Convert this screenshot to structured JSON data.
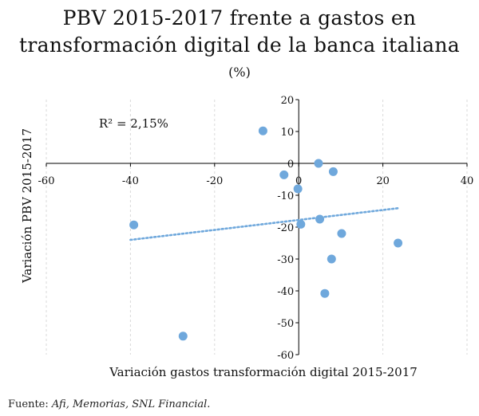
{
  "title_line1": "PBV 2015-2017 frente a gastos en",
  "title_line2": "transformación digital de la banca italiana",
  "subtitle": "(%)",
  "source": {
    "label": "Fuente: ",
    "text": "Afi, Memorias, SNL Financial",
    "end": "."
  },
  "colors": {
    "points": "#6fa8dc",
    "trendline": "#6fa8dc",
    "axis": "#000000",
    "grid": "#d9d9d9"
  },
  "chart_data": {
    "type": "scatter",
    "title": "PBV 2015-2017 frente a gastos en transformación digital de la banca italiana",
    "subtitle": "(%)",
    "xlabel": "Variación gastos transformación digital 2015-2017",
    "ylabel": "Variación PBV 2015-2017",
    "xlim": [
      -60,
      40
    ],
    "ylim": [
      -60,
      20
    ],
    "xticks": [
      -60,
      -40,
      -20,
      0,
      20,
      40
    ],
    "yticks": [
      20,
      10,
      0,
      -10,
      -20,
      -30,
      -40,
      -50,
      -60
    ],
    "tick_labels_x": [
      "-60",
      "-40",
      "-20",
      "0",
      "20",
      "40"
    ],
    "tick_labels_y": [
      "20",
      "10",
      "0",
      "-10",
      "-20",
      "-30",
      "-40",
      "-50",
      "-60"
    ],
    "grid": "vertical-dashed",
    "points": [
      {
        "x": -8.5,
        "y": 10.2
      },
      {
        "x": 4.7,
        "y": 0.0
      },
      {
        "x": 8.2,
        "y": -2.6
      },
      {
        "x": -3.5,
        "y": -3.6
      },
      {
        "x": -0.2,
        "y": -8.0
      },
      {
        "x": -39.2,
        "y": -19.3
      },
      {
        "x": 0.5,
        "y": -19.1
      },
      {
        "x": 5.0,
        "y": -17.5
      },
      {
        "x": 10.2,
        "y": -22.0
      },
      {
        "x": 23.6,
        "y": -25.0
      },
      {
        "x": 7.8,
        "y": -30.0
      },
      {
        "x": 6.2,
        "y": -40.8
      },
      {
        "x": -27.5,
        "y": -54.2
      }
    ],
    "trendline": {
      "x": [
        -40,
        24
      ],
      "y": [
        -24.0,
        -14.0
      ],
      "style": "dotted"
    },
    "annotation": "R² = 2,15%"
  }
}
